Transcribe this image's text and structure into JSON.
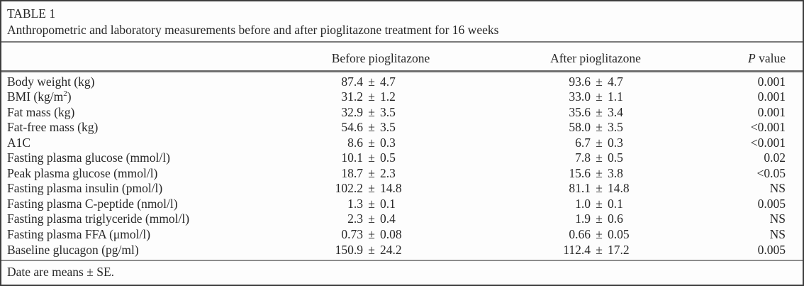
{
  "symbols": {
    "pm": "±"
  },
  "table": {
    "label": "TABLE 1",
    "caption": "Anthropometric and laboratory measurements before and after pioglitazone treatment for 16 weeks",
    "headers": {
      "before": "Before pioglitazone",
      "after": "After pioglitazone",
      "p_italic": "P",
      "p_rest": " value"
    },
    "rows": [
      {
        "label": "Body weight (kg)",
        "before_mean": "87.4",
        "before_se": "4.7",
        "after_mean": "93.6",
        "after_se": "4.7",
        "p": "0.001"
      },
      {
        "label_pre": "BMI (kg/m",
        "label_sup": "2",
        "label_close": ")",
        "before_mean": "31.2",
        "before_se": "1.2",
        "after_mean": "33.0",
        "after_se": "1.1",
        "p": "0.001"
      },
      {
        "label": "Fat mass (kg)",
        "before_mean": "32.9",
        "before_se": "3.5",
        "after_mean": "35.6",
        "after_se": "3.4",
        "p": "0.001"
      },
      {
        "label": "Fat-free mass (kg)",
        "before_mean": "54.6",
        "before_se": "3.5",
        "after_mean": "58.0",
        "after_se": "3.5",
        "p": "<0.001"
      },
      {
        "label": "A1C",
        "before_mean": "8.6",
        "before_se": "0.3",
        "after_mean": "6.7",
        "after_se": "0.3",
        "p": "<0.001"
      },
      {
        "label": "Fasting plasma glucose (mmol/l)",
        "before_mean": "10.1",
        "before_se": "0.5",
        "after_mean": "7.8",
        "after_se": "0.5",
        "p": "0.02"
      },
      {
        "label": "Peak plasma glucose (mmol/l)",
        "before_mean": "18.7",
        "before_se": "2.3",
        "after_mean": "15.6",
        "after_se": "3.8",
        "p": "<0.05"
      },
      {
        "label": "Fasting plasma insulin (pmol/l)",
        "before_mean": "102.2",
        "before_se": "14.8",
        "after_mean": "81.1",
        "after_se": "14.8",
        "p": "NS"
      },
      {
        "label": "Fasting plasma C-peptide (nmol/l)",
        "before_mean": "1.3",
        "before_se": "0.1",
        "after_mean": "1.0",
        "after_se": "0.1",
        "p": "0.005"
      },
      {
        "label": "Fasting plasma triglyceride (mmol/l)",
        "before_mean": "2.3",
        "before_se": "0.4",
        "after_mean": "1.9",
        "after_se": "0.6",
        "p": "NS"
      },
      {
        "label": "Fasting plasma FFA (μmol/l)",
        "before_mean": "0.73",
        "before_se": "0.08",
        "after_mean": "0.66",
        "after_se": "0.05",
        "p": "NS"
      },
      {
        "label": "Baseline glucagon (pg/ml)",
        "before_mean": "150.9",
        "before_se": "24.2",
        "after_mean": "112.4",
        "after_se": "17.2",
        "p": "0.005"
      }
    ],
    "footnote": "Date are means ± SE."
  }
}
